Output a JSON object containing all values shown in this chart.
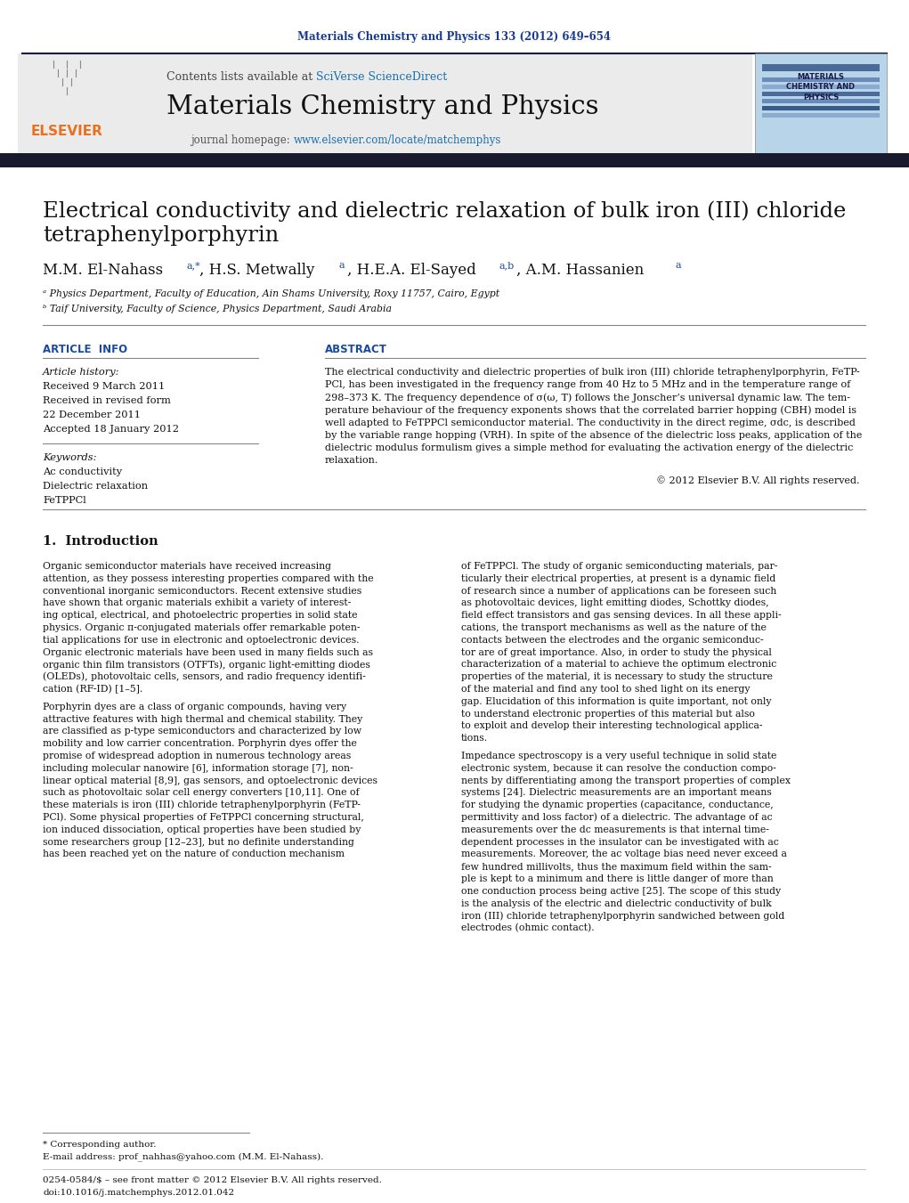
{
  "page_background": "#ffffff",
  "top_citation": "Materials Chemistry and Physics 133 (2012) 649–654",
  "top_citation_color": "#1a3a8f",
  "header_bg": "#ebebeb",
  "sciverse_color": "#1a6faf",
  "journal_title": "Materials Chemistry and Physics",
  "journal_url": "www.elsevier.com/locate/matchemphys",
  "journal_url_color": "#1a6faf",
  "dark_bar_color": "#1a1a2e",
  "article_title_line1": "Electrical conductivity and dielectric relaxation of bulk iron (III) chloride",
  "article_title_line2": "tetraphenylporphyrin",
  "affil_a": "ᵃ Physics Department, Faculty of Education, Ain Shams University, Roxy 11757, Cairo, Egypt",
  "affil_b": "ᵇ Taif University, Faculty of Science, Physics Department, Saudi Arabia",
  "section_article_info": "ARTICLE  INFO",
  "section_abstract": "ABSTRACT",
  "article_history_label": "Article history:",
  "received1": "Received 9 March 2011",
  "received2": "Received in revised form",
  "received2b": "22 December 2011",
  "accepted": "Accepted 18 January 2012",
  "keywords_label": "Keywords:",
  "keyword1": "Ac conductivity",
  "keyword2": "Dielectric relaxation",
  "keyword3": "FeTPPCl",
  "abstract_text": "The electrical conductivity and dielectric properties of bulk iron (III) chloride tetraphenylporphyrin, FeTP-\nPCl, has been investigated in the frequency range from 40 Hz to 5 MHz and in the temperature range of\n298–373 K. The frequency dependence of σ(ω, T) follows the Jonscher’s universal dynamic law. The tem-\nperature behaviour of the frequency exponents shows that the correlated barrier hopping (CBH) model is\nwell adapted to FeTPPCl semiconductor material. The conductivity in the direct regime, σdc, is described\nby the variable range hopping (VRH). In spite of the absence of the dielectric loss peaks, application of the\ndielectric modulus formulism gives a simple method for evaluating the activation energy of the dielectric\nrelaxation.",
  "copyright": "© 2012 Elsevier B.V. All rights reserved.",
  "section1_title": "1.  Introduction",
  "intro_col1": "Organic semiconductor materials have received increasing\nattention, as they possess interesting properties compared with the\nconventional inorganic semiconductors. Recent extensive studies\nhave shown that organic materials exhibit a variety of interest-\ning optical, electrical, and photoelectric properties in solid state\nphysics. Organic π-conjugated materials offer remarkable poten-\ntial applications for use in electronic and optoelectronic devices.\nOrganic electronic materials have been used in many fields such as\norganic thin film transistors (OTFTs), organic light-emitting diodes\n(OLEDs), photovoltaic cells, sensors, and radio frequency identifi-\ncation (RF-ID) [1–5].",
  "intro_col1b": "    Porphyrin dyes are a class of organic compounds, having very\nattractive features with high thermal and chemical stability. They\nare classified as p-type semiconductors and characterized by low\nmobility and low carrier concentration. Porphyrin dyes offer the\npromise of widespread adoption in numerous technology areas\nincluding molecular nanowire [6], information storage [7], non-\nlinear optical material [8,9], gas sensors, and optoelectronic devices\nsuch as photovoltaic solar cell energy converters [10,11]. One of\nthese materials is iron (III) chloride tetraphenylporphyrin (FeTP-\nPCl). Some physical properties of FeTPPCl concerning structural,\nion induced dissociation, optical properties have been studied by\nsome researchers group [12–23], but no definite understanding\nhas been reached yet on the nature of conduction mechanism",
  "intro_col2": "of FeTPPCl. The study of organic semiconducting materials, par-\nticularly their electrical properties, at present is a dynamic field\nof research since a number of applications can be foreseen such\nas photovoltaic devices, light emitting diodes, Schottky diodes,\nfield effect transistors and gas sensing devices. In all these appli-\ncations, the transport mechanisms as well as the nature of the\ncontacts between the electrodes and the organic semiconduc-\ntor are of great importance. Also, in order to study the physical\ncharacterization of a material to achieve the optimum electronic\nproperties of the material, it is necessary to study the structure\nof the material and find any tool to shed light on its energy\ngap. Elucidation of this information is quite important, not only\nto understand electronic properties of this material but also\nto exploit and develop their interesting technological applica-\ntions.",
  "intro_col2b": "    Impedance spectroscopy is a very useful technique in solid state\nelectronic system, because it can resolve the conduction compo-\nnents by differentiating among the transport properties of complex\nsystems [24]. Dielectric measurements are an important means\nfor studying the dynamic properties (capacitance, conductance,\npermittivity and loss factor) of a dielectric. The advantage of ac\nmeasurements over the dc measurements is that internal time-\ndependent processes in the insulator can be investigated with ac\nmeasurements. Moreover, the ac voltage bias need never exceed a\nfew hundred millivolts, thus the maximum field within the sam-\nple is kept to a minimum and there is little danger of more than\none conduction process being active [25]. The scope of this study\nis the analysis of the electric and dielectric conductivity of bulk\niron (III) chloride tetraphenylporphyrin sandwiched between gold\nelectrodes (ohmic contact).",
  "footnote_star": "* Corresponding author.",
  "footnote_email": "E-mail address: prof_nahhas@yahoo.com (M.M. El-Nahass).",
  "footnote_issn": "0254-0584/$ – see front matter © 2012 Elsevier B.V. All rights reserved.",
  "footnote_doi": "doi:10.1016/j.matchemphys.2012.01.042"
}
